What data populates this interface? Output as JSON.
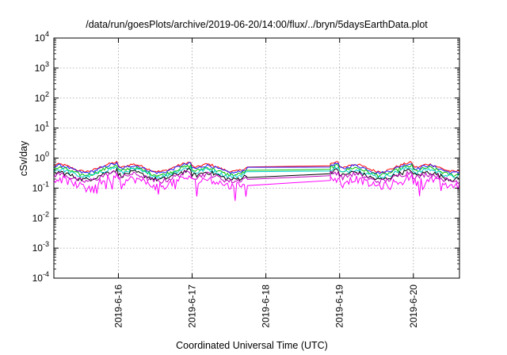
{
  "chart_data": {
    "type": "line",
    "title": "/data/run/goesPlots/archive/2019-06-20/14:00/flux/../bryn/5daysEarthData.plot",
    "xlabel": "Coordinated Universal Time (UTC)",
    "ylabel": "cSv/day",
    "yscale": "log",
    "ylim": [
      0.0001,
      10000
    ],
    "xlim": [
      "2019-06-15 03:00",
      "2019-06-20 15:00"
    ],
    "grid": true,
    "x_ticks": [
      "2019-6-16",
      "2019-6-17",
      "2019-6-18",
      "2019-6-19",
      "2019-6-20"
    ],
    "y_ticks": [
      {
        "base": "10",
        "exp": "4"
      },
      {
        "base": "10",
        "exp": "3"
      },
      {
        "base": "10",
        "exp": "2"
      },
      {
        "base": "10",
        "exp": "1"
      },
      {
        "base": "10",
        "exp": "0"
      },
      {
        "base": "10",
        "exp": "-1"
      },
      {
        "base": "10",
        "exp": "-2"
      },
      {
        "base": "10",
        "exp": "-3"
      },
      {
        "base": "10",
        "exp": "-4"
      }
    ],
    "data_gap": [
      "2019-06-17 18:00",
      "2019-06-18 21:00"
    ],
    "series": [
      {
        "color": "#ff0000",
        "level": 0.55
      },
      {
        "color": "#2020ff",
        "level": 0.5
      },
      {
        "color": "#00c000",
        "level": 0.42
      },
      {
        "color": "#00d0d0",
        "level": 0.37
      },
      {
        "color": "#000000",
        "level": 0.3
      },
      {
        "color": "#c000c0",
        "level": 0.26
      },
      {
        "color": "#ff00ff",
        "level": 0.18
      }
    ]
  }
}
